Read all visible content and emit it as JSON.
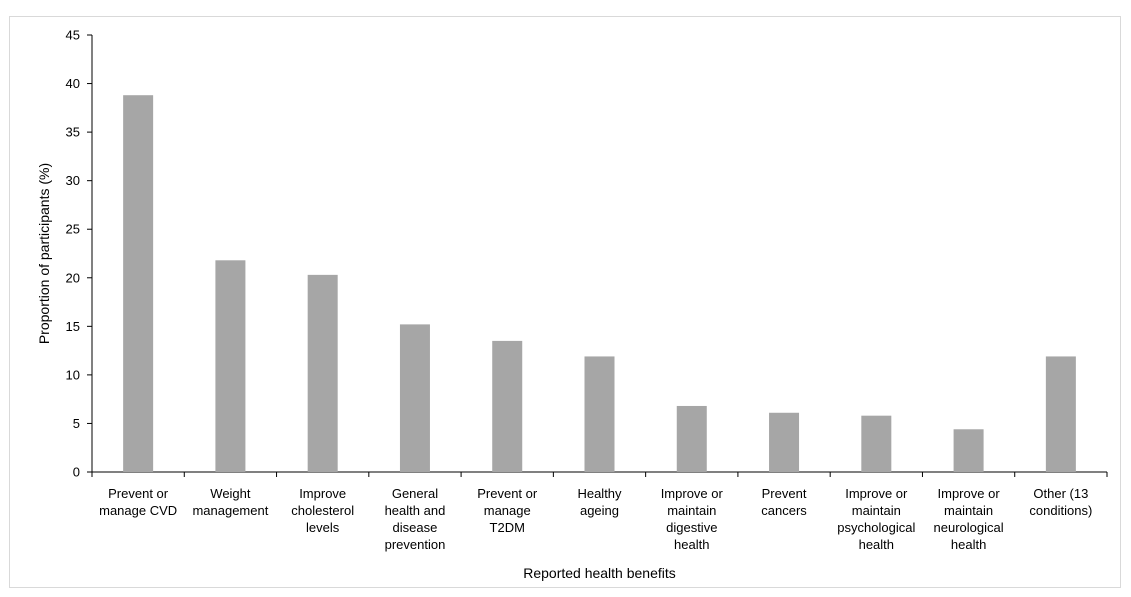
{
  "chart_data": {
    "type": "bar",
    "title": "",
    "xlabel": "Reported health benefits",
    "ylabel": "Proportion of participants (%)",
    "ylim": [
      0,
      45
    ],
    "yticks": [
      0,
      5,
      10,
      15,
      20,
      25,
      30,
      35,
      40,
      45
    ],
    "grid": false,
    "legend": "none",
    "bar_color": "#a6a6a6",
    "categories": [
      [
        "Prevent or",
        "manage CVD"
      ],
      [
        "Weight",
        "management"
      ],
      [
        "Improve",
        "cholesterol",
        "levels"
      ],
      [
        "General",
        "health and",
        "disease",
        "prevention"
      ],
      [
        "Prevent or",
        "manage",
        "T2DM"
      ],
      [
        "Healthy",
        "ageing"
      ],
      [
        "Improve or",
        "maintain",
        "digestive",
        "health"
      ],
      [
        "Prevent",
        "cancers"
      ],
      [
        "Improve or",
        "maintain",
        "psychological",
        "health"
      ],
      [
        "Improve or",
        "maintain",
        "neurological",
        "health"
      ],
      [
        "Other (13",
        "conditions)"
      ]
    ],
    "values": [
      38.8,
      21.8,
      20.3,
      15.2,
      13.5,
      11.9,
      6.8,
      6.1,
      5.8,
      4.4,
      11.9
    ]
  }
}
